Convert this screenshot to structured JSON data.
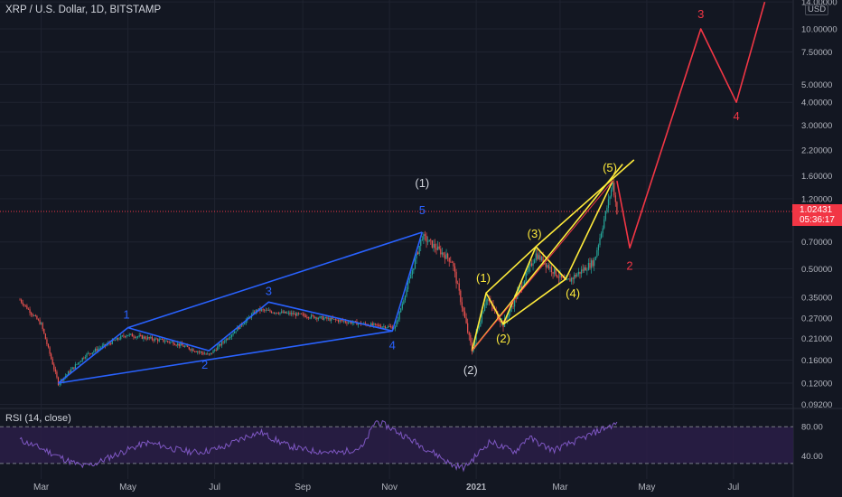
{
  "header": {
    "title": "XRP / U.S. Dollar, 1D, BITSTAMP",
    "rsi_title": "RSI (14, close)",
    "currency": "USD",
    "price_tag": "1.02431",
    "countdown": "05:36:17"
  },
  "colors": {
    "background": "#131722",
    "grid": "#1f2330",
    "up_candle": "#26a69a",
    "down_candle": "#ef5350",
    "blue_wave": "#2962ff",
    "yellow_wave": "#ffeb3b",
    "red_wave": "#f23645",
    "rsi_line": "#7e57c2",
    "rsi_band": "#2a1d46",
    "axis_text": "#b2b5be"
  },
  "chart_data": [
    {
      "type": "candlestick",
      "title": "XRP / U.S. Dollar, 1D, BITSTAMP",
      "y_scale": "log",
      "ylim": [
        0.09,
        14.0
      ],
      "y_ticks": [
        "14.00000",
        "10.00000",
        "7.50000",
        "5.00000",
        "4.00000",
        "3.00000",
        "2.20000",
        "1.60000",
        "1.20000",
        "0.70000",
        "0.50000",
        "0.35000",
        "0.27000",
        "0.21000",
        "0.16000",
        "0.12000",
        "0.09200"
      ],
      "x_ticks": [
        "Mar",
        "May",
        "Jul",
        "Sep",
        "Nov",
        "2021",
        "Mar",
        "May",
        "Jul"
      ],
      "last_price": 1.02431,
      "price_path": [
        {
          "date": "2020-02-15",
          "close": 0.34
        },
        {
          "date": "2020-03-01",
          "close": 0.25
        },
        {
          "date": "2020-03-13",
          "close": 0.12
        },
        {
          "date": "2020-04-01",
          "close": 0.17
        },
        {
          "date": "2020-04-30",
          "close": 0.22
        },
        {
          "date": "2020-06-01",
          "close": 0.2
        },
        {
          "date": "2020-06-27",
          "close": 0.17
        },
        {
          "date": "2020-07-31",
          "close": 0.3
        },
        {
          "date": "2020-09-01",
          "close": 0.28
        },
        {
          "date": "2020-10-15",
          "close": 0.25
        },
        {
          "date": "2020-11-05",
          "close": 0.24
        },
        {
          "date": "2020-11-24",
          "close": 0.75
        },
        {
          "date": "2020-12-15",
          "close": 0.55
        },
        {
          "date": "2020-12-29",
          "close": 0.18
        },
        {
          "date": "2021-01-08",
          "close": 0.35
        },
        {
          "date": "2021-01-20",
          "close": 0.25
        },
        {
          "date": "2021-02-12",
          "close": 0.6
        },
        {
          "date": "2021-03-05",
          "close": 0.42
        },
        {
          "date": "2021-03-25",
          "close": 0.55
        },
        {
          "date": "2021-04-07",
          "close": 1.45
        },
        {
          "date": "2021-04-10",
          "close": 1.02431
        }
      ],
      "wave_labels": {
        "blue": [
          "1",
          "2",
          "3",
          "4",
          "5"
        ],
        "yellow": [
          "(1)",
          "(2)",
          "(3)",
          "(4)",
          "(5)"
        ],
        "white": [
          "(1)",
          "(2)"
        ],
        "red": [
          "2",
          "3",
          "4"
        ]
      },
      "red_projection": [
        {
          "date": "2021-04-10",
          "price": 1.5
        },
        {
          "date": "2021-04-19",
          "price": 0.65
        },
        {
          "date": "2021-06-08",
          "price": 10.0
        },
        {
          "date": "2021-07-03",
          "price": 4.0
        },
        {
          "date": "2021-07-23",
          "price": 14.0
        }
      ]
    },
    {
      "type": "line",
      "title": "RSI (14, close)",
      "ylim": [
        15,
        95
      ],
      "y_ticks": [
        "80.00",
        "40.00"
      ],
      "bands": [
        30,
        80
      ],
      "values": [
        62,
        55,
        48,
        40,
        32,
        26,
        30,
        38,
        45,
        52,
        58,
        55,
        50,
        47,
        45,
        48,
        52,
        60,
        68,
        72,
        63,
        55,
        50,
        47,
        46,
        44,
        48,
        52,
        88,
        80,
        70,
        60,
        50,
        40,
        28,
        24,
        42,
        60,
        52,
        46,
        66,
        56,
        48,
        55,
        62,
        70,
        78,
        84
      ]
    }
  ]
}
